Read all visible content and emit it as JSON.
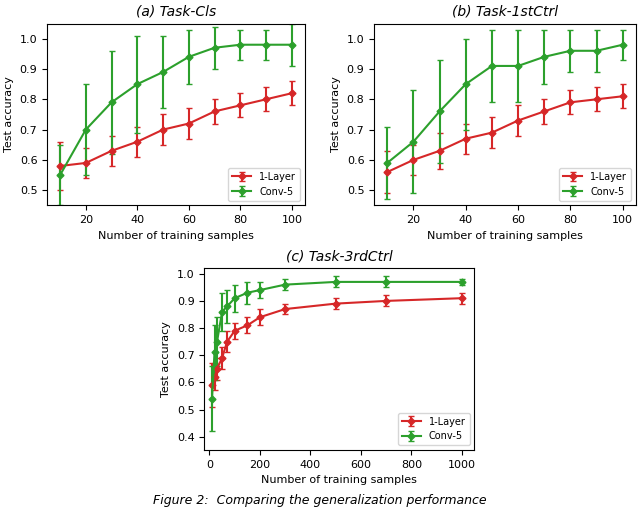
{
  "chart_data": [
    {
      "type": "line",
      "title": "(a) Task-Cls",
      "x_label": "Number of training samples",
      "y_label": "Test accuracy",
      "x": [
        10,
        20,
        30,
        40,
        50,
        60,
        70,
        80,
        90,
        100
      ],
      "xlim": [
        5,
        105
      ],
      "ylim": [
        0.45,
        1.05
      ],
      "xticks": [
        20,
        40,
        60,
        80,
        100
      ],
      "yticks": [
        0.5,
        0.6,
        0.7,
        0.8,
        0.9,
        {
          "value": 1,
          "label": "1.0"
        }
      ],
      "legend": "lower right",
      "marker": "diamond",
      "series": [
        {
          "name": "1-Layer",
          "color": "#d62728",
          "values": [
            0.58,
            0.59,
            0.63,
            0.66,
            0.7,
            0.72,
            0.76,
            0.78,
            0.8,
            0.82
          ],
          "errors": [
            0.08,
            0.05,
            0.05,
            0.05,
            0.05,
            0.05,
            0.04,
            0.04,
            0.04,
            0.04
          ]
        },
        {
          "name": "Conv-5",
          "color": "#2ca02c",
          "values": [
            0.55,
            0.7,
            0.79,
            0.85,
            0.89,
            0.94,
            0.97,
            0.98,
            0.98,
            0.98
          ],
          "errors": [
            0.1,
            0.15,
            0.17,
            0.16,
            0.12,
            0.09,
            0.07,
            0.05,
            0.05,
            0.07
          ]
        }
      ]
    },
    {
      "type": "line",
      "title": "(b) Task-1stCtrl",
      "x_label": "Number of training samples",
      "y_label": "Test accuracy",
      "x": [
        10,
        20,
        30,
        40,
        50,
        60,
        70,
        80,
        90,
        100
      ],
      "xlim": [
        5,
        105
      ],
      "ylim": [
        0.45,
        1.05
      ],
      "xticks": [
        20,
        40,
        60,
        80,
        100
      ],
      "yticks": [
        0.5,
        0.6,
        0.7,
        0.8,
        0.9,
        {
          "value": 1,
          "label": "1.0"
        }
      ],
      "legend": "lower right",
      "marker": "diamond",
      "series": [
        {
          "name": "1-Layer",
          "color": "#d62728",
          "values": [
            0.56,
            0.6,
            0.63,
            0.67,
            0.69,
            0.73,
            0.76,
            0.79,
            0.8,
            0.81
          ],
          "errors": [
            0.07,
            0.05,
            0.06,
            0.05,
            0.05,
            0.05,
            0.04,
            0.04,
            0.04,
            0.04
          ]
        },
        {
          "name": "Conv-5",
          "color": "#2ca02c",
          "values": [
            0.59,
            0.66,
            0.76,
            0.85,
            0.91,
            0.91,
            0.94,
            0.96,
            0.96,
            0.98
          ],
          "errors": [
            0.12,
            0.17,
            0.17,
            0.15,
            0.12,
            0.12,
            0.09,
            0.07,
            0.07,
            0.05
          ]
        }
      ]
    },
    {
      "type": "line",
      "title": "(c) Task-3rdCtrl",
      "x_label": "Number of training samples",
      "y_label": "Test accuracy",
      "x": [
        10,
        20,
        30,
        50,
        70,
        100,
        150,
        200,
        300,
        500,
        700,
        1000
      ],
      "xlim": [
        -20,
        1050
      ],
      "ylim": [
        0.35,
        1.02
      ],
      "xticks": [
        0,
        200,
        400,
        600,
        800,
        1000
      ],
      "yticks": [
        0.4,
        0.5,
        0.6,
        0.7,
        0.8,
        0.9,
        {
          "value": 1,
          "label": "1.0"
        }
      ],
      "legend": "lower right",
      "marker": "diamond",
      "series": [
        {
          "name": "1-Layer",
          "color": "#d62728",
          "values": [
            0.59,
            0.62,
            0.65,
            0.69,
            0.75,
            0.79,
            0.81,
            0.84,
            0.87,
            0.89,
            0.9,
            0.91
          ],
          "errors": [
            0.08,
            0.05,
            0.04,
            0.04,
            0.04,
            0.03,
            0.03,
            0.03,
            0.02,
            0.02,
            0.02,
            0.02
          ]
        },
        {
          "name": "Conv-5",
          "color": "#2ca02c",
          "values": [
            0.54,
            0.71,
            0.75,
            0.86,
            0.88,
            0.91,
            0.93,
            0.94,
            0.96,
            0.97,
            0.97,
            0.97
          ],
          "errors": [
            0.12,
            0.1,
            0.09,
            0.07,
            0.06,
            0.05,
            0.04,
            0.03,
            0.02,
            0.02,
            0.02,
            0.01
          ]
        }
      ]
    }
  ],
  "caption": "Figure 2:  Comparing the generalization performance"
}
